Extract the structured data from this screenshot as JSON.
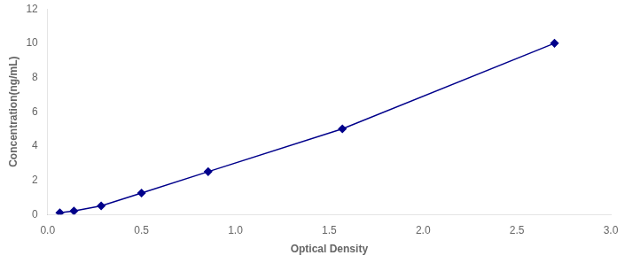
{
  "chart_data": {
    "type": "line",
    "x": [
      0.065,
      0.14,
      0.285,
      0.5,
      0.855,
      1.57,
      2.7
    ],
    "values": [
      0.1,
      0.2,
      0.5,
      1.25,
      2.5,
      5.0,
      10.0
    ],
    "color": "#00008B",
    "marker": "diamond",
    "line_style": "solid",
    "xlabel": "Optical Density",
    "ylabel": "Concentration(ng/mL)",
    "xlim": [
      0,
      3
    ],
    "ylim": [
      0,
      12
    ],
    "xticks": [
      {
        "value": 0,
        "label": "0.0"
      },
      0.5,
      {
        "value": 1,
        "label": "1.0"
      },
      1.5,
      {
        "value": 2,
        "label": "2.0"
      },
      2.5,
      {
        "value": 3,
        "label": "3.0"
      }
    ],
    "yticks": [
      0,
      2,
      4,
      6,
      8,
      10,
      12
    ],
    "grid": false
  }
}
